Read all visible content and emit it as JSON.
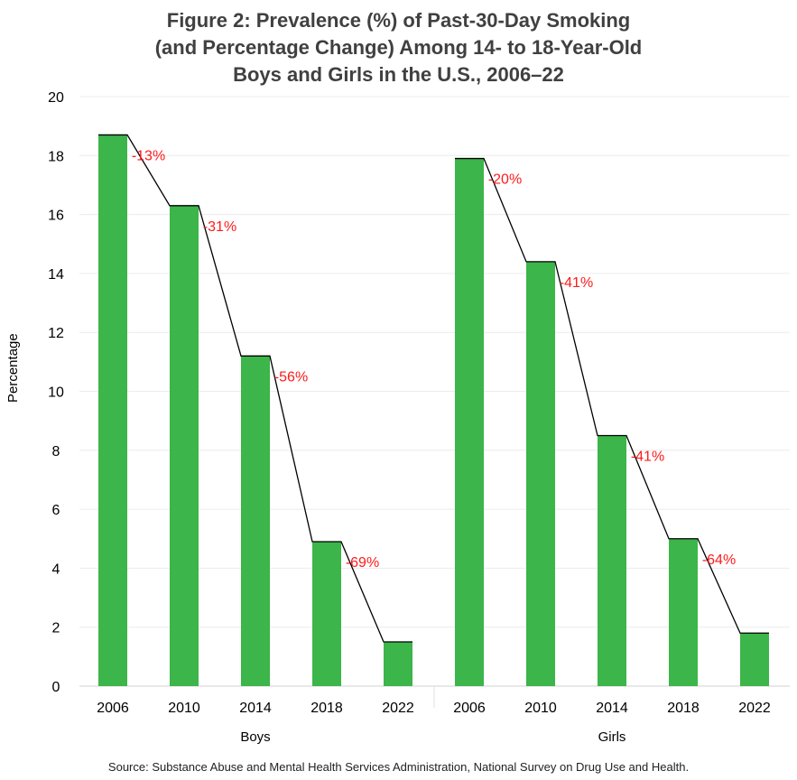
{
  "chart_data": {
    "type": "bar",
    "title": [
      "Figure 2: Prevalence (%) of Past-30-Day Smoking",
      "(and Percentage Change) Among 14- to 18-Year-Old",
      "Boys and Girls in the U.S., 2006–22"
    ],
    "ylabel": "Percentage",
    "xlabel": "",
    "ylim": [
      0,
      20
    ],
    "yticks": [
      0,
      2,
      4,
      6,
      8,
      10,
      12,
      14,
      16,
      18,
      20
    ],
    "grid": true,
    "color": "#3cb54a",
    "line_color": "#000000",
    "annotation_color": "#ff1a1a",
    "groups": [
      {
        "name": "Boys",
        "categories": [
          "2006",
          "2010",
          "2014",
          "2018",
          "2022"
        ],
        "values": [
          18.7,
          16.3,
          11.2,
          4.9,
          1.5
        ],
        "changes": [
          "-13%",
          "-31%",
          "-56%",
          "-69%"
        ]
      },
      {
        "name": "Girls",
        "categories": [
          "2006",
          "2010",
          "2014",
          "2018",
          "2022"
        ],
        "values": [
          17.9,
          14.4,
          8.5,
          5.0,
          1.8
        ],
        "changes": [
          "-20%",
          "-41%",
          "-41%",
          "-64%"
        ]
      }
    ],
    "source": "Source: Substance Abuse and Mental Health Services Administration, National Survey on Drug Use and Health."
  }
}
